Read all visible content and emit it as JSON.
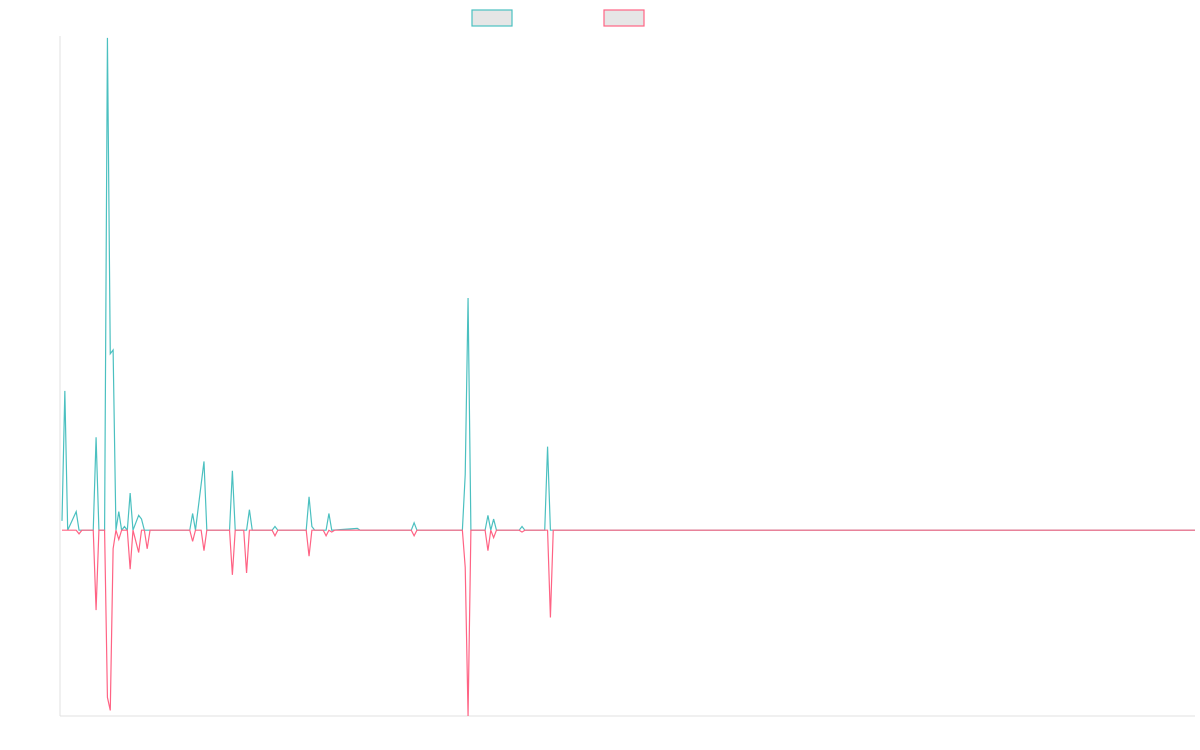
{
  "chart_data": {
    "type": "line",
    "title": "",
    "xlabel": "",
    "ylabel": "",
    "x_count": 400,
    "ylim": [
      -1,
      2.66
    ],
    "legend_position": "top-center",
    "grid": false,
    "series": [
      {
        "color": "#4bc0c0",
        "legend_fill": "#e6e6e6",
        "points": [
          [
            0,
            0.05
          ],
          [
            1,
            0.75
          ],
          [
            2,
            0
          ],
          [
            5,
            0.1
          ],
          [
            6,
            0
          ],
          [
            11,
            0
          ],
          [
            12,
            0.5
          ],
          [
            13,
            0
          ],
          [
            15,
            0
          ],
          [
            16,
            2.65
          ],
          [
            17,
            0.95
          ],
          [
            18,
            0.97
          ],
          [
            19,
            0
          ],
          [
            20,
            0.1
          ],
          [
            21,
            0
          ],
          [
            22,
            0.02
          ],
          [
            23,
            0
          ],
          [
            24,
            0.2
          ],
          [
            25,
            0
          ],
          [
            27,
            0.08
          ],
          [
            28,
            0.06
          ],
          [
            29,
            0
          ],
          [
            45,
            0
          ],
          [
            46,
            0.09
          ],
          [
            47,
            0
          ],
          [
            50,
            0.37
          ],
          [
            51,
            0
          ],
          [
            59,
            0
          ],
          [
            60,
            0.32
          ],
          [
            61,
            0
          ],
          [
            65,
            0
          ],
          [
            66,
            0.11
          ],
          [
            67,
            0
          ],
          [
            74,
            0
          ],
          [
            75,
            0.02
          ],
          [
            76,
            0
          ],
          [
            86,
            0
          ],
          [
            87,
            0.18
          ],
          [
            88,
            0.02
          ],
          [
            89,
            0
          ],
          [
            93,
            0
          ],
          [
            94,
            0.09
          ],
          [
            95,
            0
          ],
          [
            104,
            0.01
          ],
          [
            105,
            0
          ],
          [
            123,
            0
          ],
          [
            124,
            0.04
          ],
          [
            125,
            0
          ],
          [
            141,
            0
          ],
          [
            142,
            0.3
          ],
          [
            143,
            1.25
          ],
          [
            144,
            0
          ],
          [
            149,
            0
          ],
          [
            150,
            0.08
          ],
          [
            151,
            0
          ],
          [
            152,
            0.06
          ],
          [
            153,
            0
          ],
          [
            161,
            0
          ],
          [
            162,
            0.02
          ],
          [
            163,
            0
          ],
          [
            170,
            0
          ],
          [
            171,
            0.45
          ],
          [
            172,
            0
          ],
          [
            399,
            0
          ]
        ]
      },
      {
        "color": "#ff6384",
        "legend_fill": "#e6e6e6",
        "points": [
          [
            0,
            0
          ],
          [
            1,
            0
          ],
          [
            5,
            0
          ],
          [
            6,
            -0.02
          ],
          [
            7,
            0
          ],
          [
            11,
            0
          ],
          [
            12,
            -0.43
          ],
          [
            13,
            0
          ],
          [
            15,
            0
          ],
          [
            16,
            -0.9
          ],
          [
            17,
            -0.97
          ],
          [
            18,
            -0.1
          ],
          [
            19,
            0
          ],
          [
            20,
            -0.05
          ],
          [
            21,
            0
          ],
          [
            23,
            0
          ],
          [
            24,
            -0.21
          ],
          [
            25,
            0
          ],
          [
            27,
            -0.12
          ],
          [
            28,
            0
          ],
          [
            29,
            0
          ],
          [
            30,
            -0.1
          ],
          [
            31,
            0
          ],
          [
            45,
            0
          ],
          [
            46,
            -0.06
          ],
          [
            47,
            0
          ],
          [
            49,
            0
          ],
          [
            50,
            -0.11
          ],
          [
            51,
            0
          ],
          [
            59,
            0
          ],
          [
            60,
            -0.24
          ],
          [
            61,
            0
          ],
          [
            64,
            0
          ],
          [
            65,
            -0.23
          ],
          [
            66,
            0
          ],
          [
            74,
            0
          ],
          [
            75,
            -0.03
          ],
          [
            76,
            0
          ],
          [
            86,
            0
          ],
          [
            87,
            -0.14
          ],
          [
            88,
            0
          ],
          [
            92,
            0
          ],
          [
            93,
            -0.03
          ],
          [
            94,
            0
          ],
          [
            95,
            -0.01
          ],
          [
            96,
            0
          ],
          [
            123,
            0
          ],
          [
            124,
            -0.03
          ],
          [
            125,
            0
          ],
          [
            141,
            0
          ],
          [
            142,
            -0.2
          ],
          [
            143,
            -1.0
          ],
          [
            144,
            0
          ],
          [
            149,
            0
          ],
          [
            150,
            -0.11
          ],
          [
            151,
            0
          ],
          [
            152,
            -0.04
          ],
          [
            153,
            0
          ],
          [
            161,
            0
          ],
          [
            162,
            -0.01
          ],
          [
            163,
            0
          ],
          [
            171,
            0
          ],
          [
            172,
            -0.47
          ],
          [
            173,
            0
          ],
          [
            399,
            0
          ]
        ]
      }
    ]
  }
}
